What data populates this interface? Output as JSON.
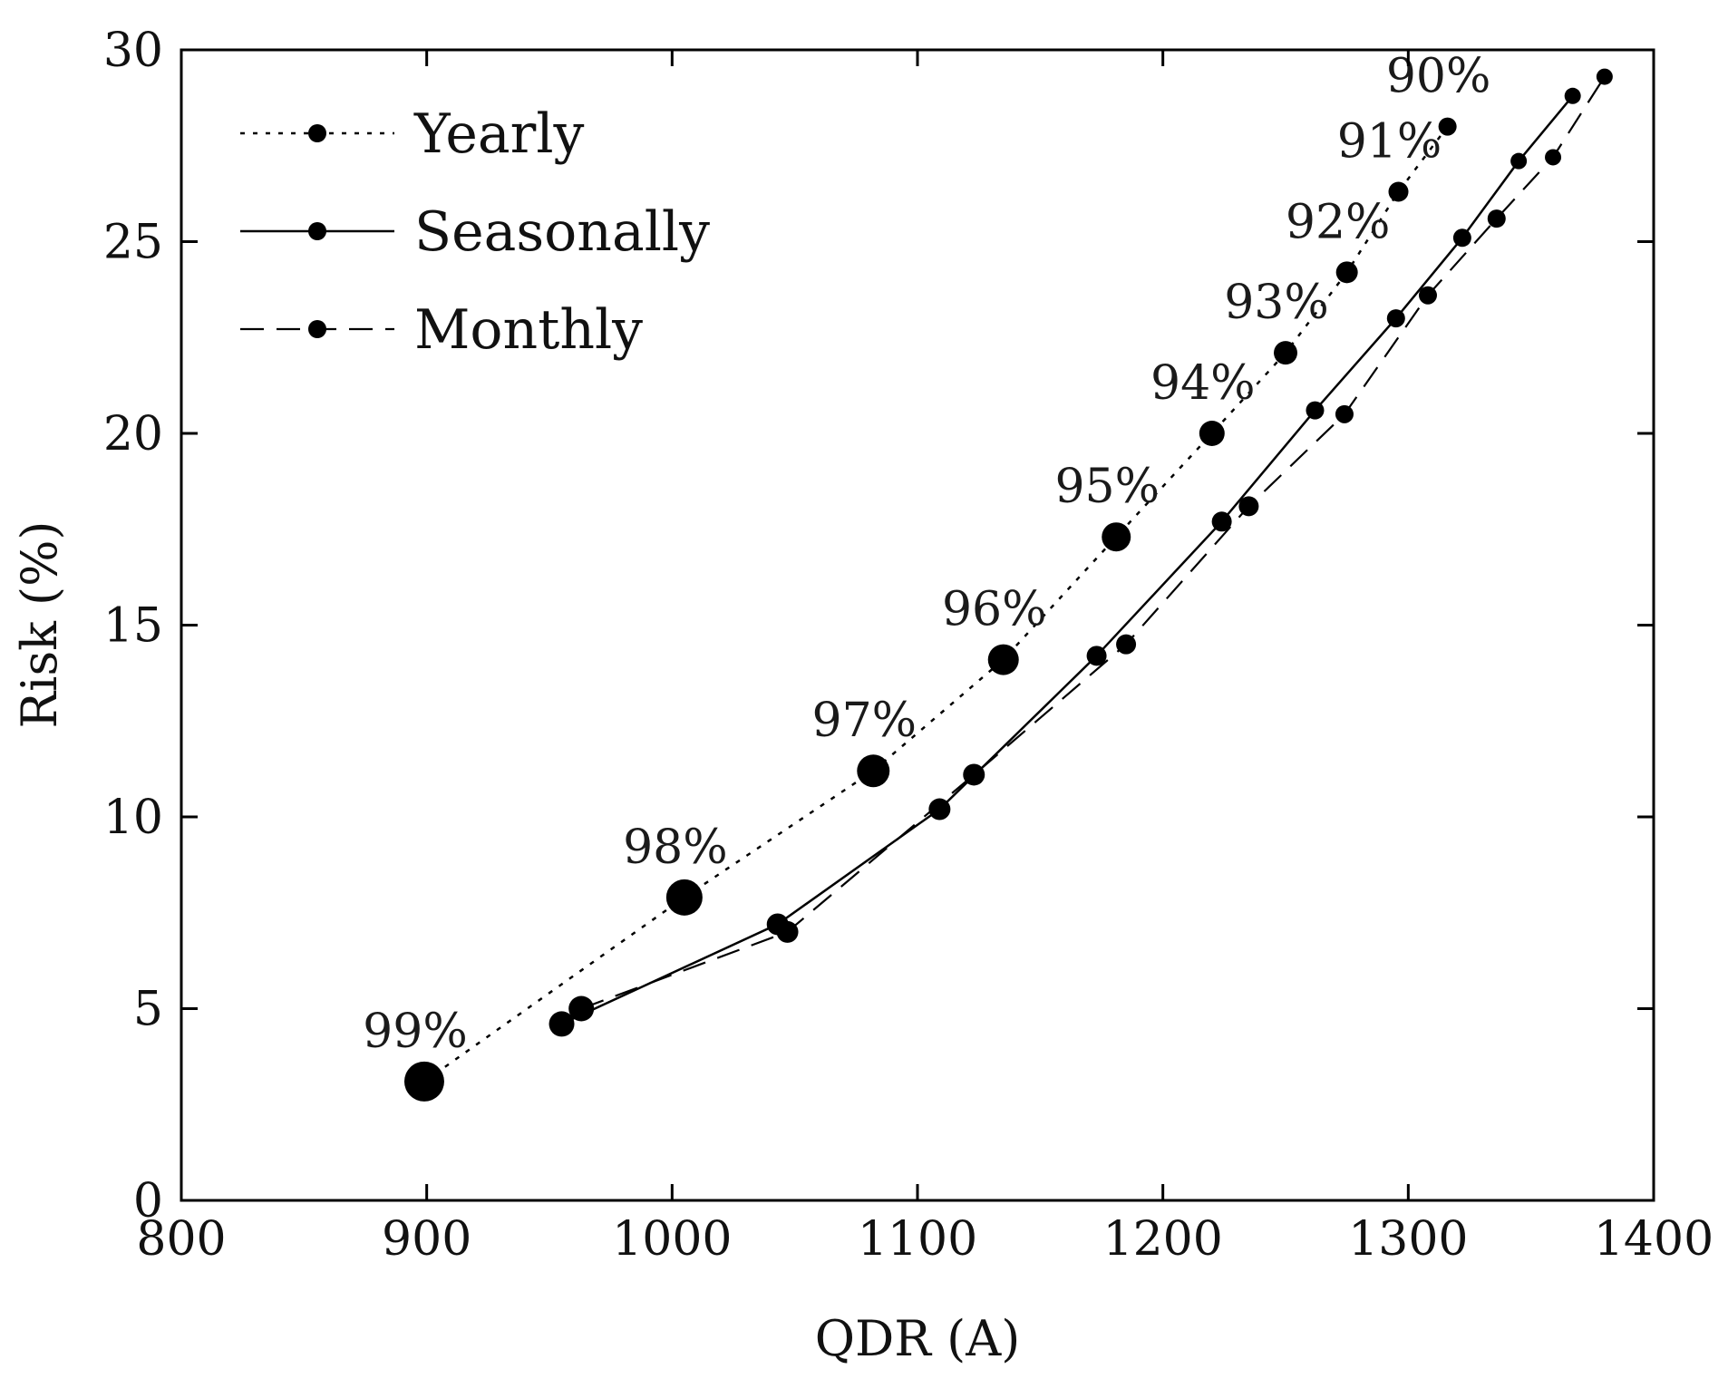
{
  "chart_data": {
    "type": "line",
    "xlabel": "QDR (A)",
    "ylabel": "Risk (%)",
    "xlim": [
      800,
      1400
    ],
    "ylim": [
      0,
      30
    ],
    "x_ticks": [
      800,
      900,
      1000,
      1100,
      1200,
      1300,
      1400
    ],
    "y_ticks": [
      0,
      5,
      10,
      15,
      20,
      25,
      30
    ],
    "grid": false,
    "legend_position": "top-left",
    "series": [
      {
        "name": "Yearly",
        "style": "dotted",
        "marker_sizes": [
          22,
          20,
          18,
          17,
          16,
          14,
          13,
          12,
          11,
          10
        ],
        "points": [
          {
            "x": 899,
            "y": 3.1,
            "label": "99%"
          },
          {
            "x": 1005,
            "y": 7.9,
            "label": "98%"
          },
          {
            "x": 1082,
            "y": 11.2,
            "label": "97%"
          },
          {
            "x": 1135,
            "y": 14.1,
            "label": "96%"
          },
          {
            "x": 1181,
            "y": 17.3,
            "label": "95%"
          },
          {
            "x": 1220,
            "y": 20.0,
            "label": "94%"
          },
          {
            "x": 1250,
            "y": 22.1,
            "label": "93%"
          },
          {
            "x": 1275,
            "y": 24.2,
            "label": "92%"
          },
          {
            "x": 1296,
            "y": 26.3,
            "label": "91%"
          },
          {
            "x": 1316,
            "y": 28.0,
            "label": "90%"
          }
        ]
      },
      {
        "name": "Seasonally",
        "style": "solid",
        "marker_sizes": [
          14,
          12,
          12,
          11,
          11,
          10,
          10,
          10,
          9,
          9
        ],
        "points": [
          {
            "x": 955,
            "y": 4.6
          },
          {
            "x": 1043,
            "y": 7.2
          },
          {
            "x": 1109,
            "y": 10.2
          },
          {
            "x": 1173,
            "y": 14.2
          },
          {
            "x": 1224,
            "y": 17.7
          },
          {
            "x": 1262,
            "y": 20.6
          },
          {
            "x": 1295,
            "y": 23.0
          },
          {
            "x": 1322,
            "y": 25.1
          },
          {
            "x": 1345,
            "y": 27.1
          },
          {
            "x": 1367,
            "y": 28.8
          }
        ]
      },
      {
        "name": "Monthly",
        "style": "dashed",
        "marker_sizes": [
          14,
          12,
          12,
          11,
          11,
          10,
          10,
          10,
          9,
          9
        ],
        "points": [
          {
            "x": 963,
            "y": 5.0
          },
          {
            "x": 1047,
            "y": 7.0
          },
          {
            "x": 1123,
            "y": 11.1
          },
          {
            "x": 1185,
            "y": 14.5
          },
          {
            "x": 1235,
            "y": 18.1
          },
          {
            "x": 1274,
            "y": 20.5
          },
          {
            "x": 1308,
            "y": 23.6
          },
          {
            "x": 1336,
            "y": 25.6
          },
          {
            "x": 1359,
            "y": 27.2
          },
          {
            "x": 1380,
            "y": 29.3
          }
        ]
      }
    ]
  }
}
